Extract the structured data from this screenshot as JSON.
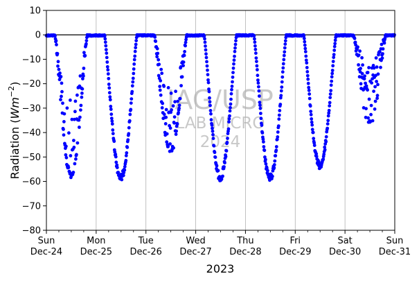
{
  "chart_data": {
    "type": "scatter",
    "title": "",
    "xlabel": "2023",
    "ylabel": "Radiation (Wm^-2)",
    "ylabel_parts": {
      "main": "Radiation (",
      "var": "Wm",
      "sup": "−2",
      "close": ")"
    },
    "ylim": [
      -80,
      10
    ],
    "y_ticks": [
      10,
      0,
      -10,
      -20,
      -30,
      -40,
      -50,
      -60,
      -70,
      -80
    ],
    "y_tick_labels": [
      "10",
      "0",
      "−10",
      "−20",
      "−30",
      "−40",
      "−50",
      "−60",
      "−70",
      "−80"
    ],
    "x_range_days": [
      "2023-12-24",
      "2023-12-31"
    ],
    "x_ticks": [
      {
        "day": "Sun",
        "date": "Dec-24"
      },
      {
        "day": "Mon",
        "date": "Dec-25"
      },
      {
        "day": "Tue",
        "date": "Dec-26"
      },
      {
        "day": "Wed",
        "date": "Dec-27"
      },
      {
        "day": "Thu",
        "date": "Dec-28"
      },
      {
        "day": "Fri",
        "date": "Dec-29"
      },
      {
        "day": "Sat",
        "date": "Dec-30"
      },
      {
        "day": "Sun",
        "date": "Dec-31"
      }
    ],
    "grid": "vertical",
    "reference_line_y": 0,
    "marker_color": "#0000ff",
    "series": [
      {
        "daily_minima": [
          {
            "date": "Dec-24",
            "min": -59
          },
          {
            "date": "Dec-25",
            "min": -60
          },
          {
            "date": "Dec-26",
            "min": -49
          },
          {
            "date": "Dec-27",
            "min": -60
          },
          {
            "date": "Dec-28",
            "min": -60
          },
          {
            "date": "Dec-29",
            "min": -55
          },
          {
            "date": "Dec-30",
            "min": -38
          }
        ]
      }
    ],
    "watermark": [
      "IAG/USP",
      "LAB MICRO",
      "2024"
    ]
  }
}
